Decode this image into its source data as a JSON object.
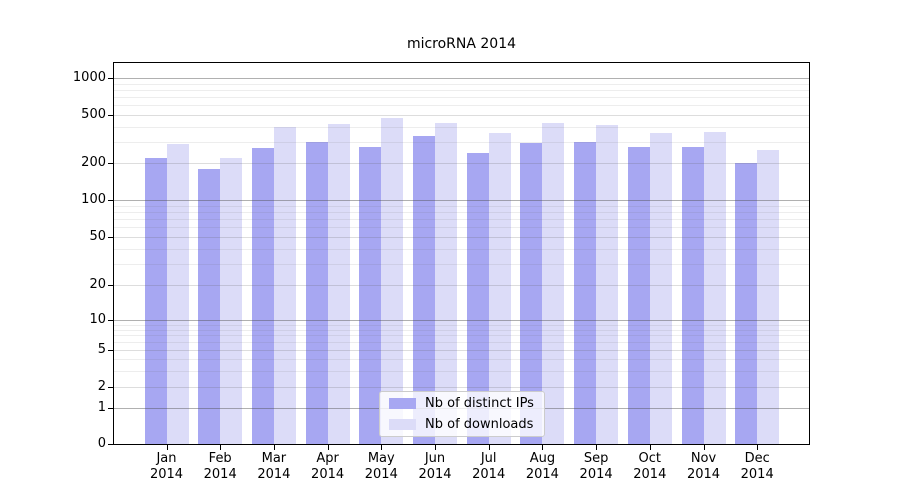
{
  "title": "microRNA 2014",
  "chart_data": {
    "type": "bar",
    "title": "microRNA 2014",
    "categories": [
      "Jan",
      "Feb",
      "Mar",
      "Apr",
      "May",
      "Jun",
      "Jul",
      "Aug",
      "Sep",
      "Oct",
      "Nov",
      "Dec"
    ],
    "year": "2014",
    "series": [
      {
        "name": "Nb of distinct IPs",
        "color": "#a7a7f2",
        "values": [
          220,
          180,
          265,
          300,
          270,
          335,
          240,
          295,
          300,
          270,
          270,
          200
        ]
      },
      {
        "name": "Nb of downloads",
        "color": "#dcdcf8",
        "values": [
          290,
          220,
          395,
          420,
          470,
          430,
          355,
          430,
          410,
          355,
          365,
          255
        ]
      }
    ],
    "y_ticks": [
      0,
      1,
      2,
      5,
      10,
      20,
      50,
      100,
      200,
      500,
      1000
    ],
    "yscale": "log-like-with-zero-baseline",
    "ylim": [
      0,
      1200
    ],
    "grid": true,
    "legend_position": "lower center inside plot",
    "legend": [
      "Nb of distinct IPs",
      "Nb of downloads"
    ]
  }
}
